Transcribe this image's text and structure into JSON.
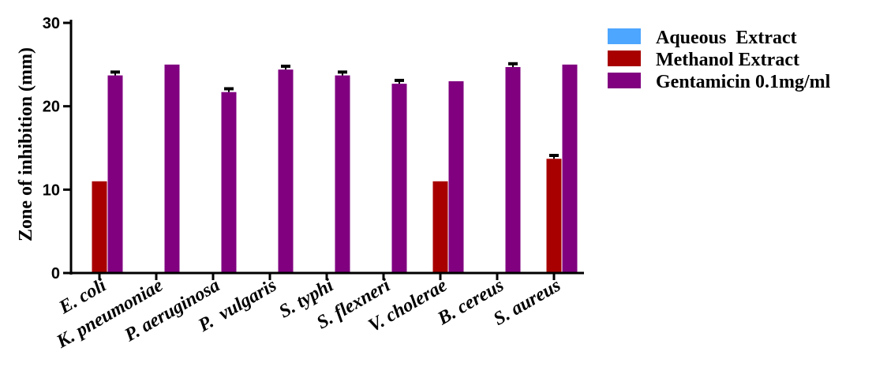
{
  "chart_data": {
    "type": "bar",
    "title": "",
    "xlabel": "",
    "ylabel": "Zone of inhibition (mm)",
    "ylim": [
      0,
      30
    ],
    "yticks": [
      0,
      10,
      20,
      30
    ],
    "grid": false,
    "legend_position": "top-right",
    "categories": [
      "E. coli",
      "K. pneumoniae",
      "P. aeruginosa",
      "P.  vulgaris",
      "S. typhi",
      "S. flexneri",
      "V. cholerae",
      "B. cereus",
      "S. aureus"
    ],
    "series": [
      {
        "name": "Aqueous  Extract",
        "color": "#4da6ff",
        "values": [
          0,
          0,
          0,
          0,
          0,
          0,
          0,
          0,
          0
        ],
        "errors": [
          0,
          0,
          0,
          0,
          0,
          0,
          0,
          0,
          0
        ]
      },
      {
        "name": "Methanol Extract",
        "color": "#a80000",
        "values": [
          11,
          0,
          0,
          0,
          0,
          0,
          11,
          0,
          13.7
        ],
        "errors": [
          0,
          0,
          0,
          0,
          0,
          0,
          0,
          0,
          0.4
        ]
      },
      {
        "name": "Gentamicin 0.1mg/ml",
        "color": "#800080",
        "values": [
          23.7,
          25,
          21.7,
          24.4,
          23.7,
          22.7,
          23,
          24.7,
          25
        ],
        "errors": [
          0.4,
          0,
          0.4,
          0.4,
          0.4,
          0.4,
          0,
          0.4,
          0
        ]
      }
    ]
  }
}
